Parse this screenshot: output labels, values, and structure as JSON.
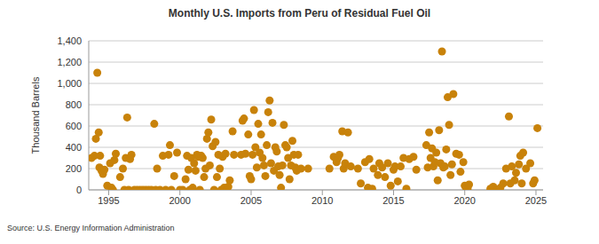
{
  "chart_data": {
    "type": "scatter",
    "title": "Monthly U.S. Imports from Peru of Residual Fuel Oil",
    "y_label": "Thousand Barrels",
    "source": "Source: U.S. Energy Information Administration",
    "color": "#c8820a",
    "marker": "circle",
    "grid": true,
    "xlim": [
      1993.6,
      2025.5
    ],
    "xticks": [
      1995,
      2000,
      2005,
      2010,
      2015,
      2020,
      2025
    ],
    "ylim": [
      0,
      1400
    ],
    "yticks": [
      0,
      200,
      400,
      600,
      800,
      {
        "value": 1000,
        "label": "1,000"
      },
      {
        "value": 1200,
        "label": "1,200"
      },
      {
        "value": 1400,
        "label": "1,400"
      }
    ],
    "x": [
      1993.8,
      1994.0,
      1994.1,
      1994.2,
      1994.3,
      1994.35,
      1994.4,
      1994.5,
      1994.6,
      1994.7,
      1994.9,
      1995.1,
      1995.2,
      1995.3,
      1995.4,
      1995.5,
      1995.8,
      1996.0,
      1996.1,
      1996.2,
      1996.3,
      1996.4,
      1996.5,
      1996.6,
      1996.8,
      1997.0,
      1997.2,
      1997.4,
      1997.6,
      1997.8,
      1998.0,
      1998.2,
      1998.3,
      1998.4,
      1998.6,
      1998.8,
      1999.0,
      1999.2,
      1999.3,
      1999.4,
      1999.6,
      1999.8,
      2000.0,
      2000.2,
      2000.4,
      2000.5,
      2000.6,
      2000.7,
      2000.8,
      2000.9,
      2001.0,
      2001.1,
      2001.2,
      2001.3,
      2001.4,
      2001.5,
      2001.6,
      2001.7,
      2001.8,
      2001.9,
      2002.0,
      2002.1,
      2002.2,
      2002.3,
      2002.4,
      2002.5,
      2002.6,
      2002.7,
      2002.8,
      2002.9,
      2003.0,
      2003.1,
      2003.2,
      2003.3,
      2003.4,
      2003.5,
      2003.7,
      2003.8,
      2004.3,
      2004.4,
      2004.5,
      2004.6,
      2004.8,
      2004.9,
      2005.0,
      2005.1,
      2005.2,
      2005.3,
      2005.4,
      2005.5,
      2005.6,
      2005.7,
      2005.8,
      2005.9,
      2006.0,
      2006.1,
      2006.2,
      2006.3,
      2006.4,
      2006.5,
      2006.6,
      2006.7,
      2006.8,
      2006.9,
      2007.0,
      2007.1,
      2007.2,
      2007.3,
      2007.4,
      2007.5,
      2007.6,
      2007.7,
      2007.8,
      2007.9,
      2008.0,
      2008.1,
      2008.2,
      2008.3,
      2008.5,
      2009.0,
      2010.5,
      2010.8,
      2011.0,
      2011.1,
      2011.2,
      2011.4,
      2011.5,
      2011.6,
      2011.8,
      2012.0,
      2012.5,
      2012.7,
      2013.0,
      2013.2,
      2013.3,
      2013.5,
      2013.6,
      2013.9,
      2014.0,
      2014.2,
      2014.4,
      2014.6,
      2014.8,
      2015.0,
      2015.1,
      2015.3,
      2015.5,
      2015.7,
      2015.9,
      2016.1,
      2016.4,
      2016.6,
      2017.3,
      2017.4,
      2017.5,
      2017.6,
      2017.7,
      2017.8,
      2017.9,
      2018.0,
      2018.1,
      2018.2,
      2018.3,
      2018.4,
      2018.5,
      2018.6,
      2018.7,
      2018.8,
      2018.9,
      2019.0,
      2019.1,
      2019.2,
      2019.4,
      2019.6,
      2019.7,
      2019.9,
      2020.0,
      2020.1,
      2020.2,
      2020.3,
      2021.8,
      2022.0,
      2022.3,
      2022.5,
      2022.7,
      2022.9,
      2023.1,
      2023.2,
      2023.3,
      2023.5,
      2023.6,
      2023.8,
      2023.9,
      2024.0,
      2024.1,
      2024.3,
      2024.6,
      2024.8,
      2024.9,
      2025.1
    ],
    "values": [
      300,
      320,
      480,
      1100,
      540,
      210,
      320,
      180,
      150,
      190,
      40,
      250,
      20,
      0,
      280,
      340,
      120,
      200,
      0,
      300,
      680,
      0,
      290,
      330,
      0,
      0,
      0,
      0,
      0,
      0,
      0,
      620,
      0,
      200,
      0,
      320,
      0,
      330,
      420,
      0,
      130,
      350,
      0,
      0,
      100,
      320,
      190,
      0,
      300,
      20,
      250,
      180,
      330,
      310,
      0,
      320,
      300,
      120,
      200,
      480,
      540,
      230,
      660,
      410,
      0,
      450,
      120,
      330,
      200,
      0,
      310,
      20,
      340,
      0,
      30,
      90,
      550,
      330,
      330,
      650,
      670,
      340,
      520,
      130,
      100,
      330,
      750,
      400,
      210,
      620,
      350,
      520,
      300,
      230,
      130,
      420,
      730,
      840,
      250,
      630,
      180,
      400,
      360,
      220,
      140,
      20,
      230,
      610,
      420,
      400,
      300,
      100,
      230,
      460,
      330,
      210,
      180,
      330,
      200,
      200,
      200,
      310,
      260,
      300,
      330,
      550,
      200,
      250,
      540,
      220,
      200,
      60,
      260,
      20,
      290,
      10,
      200,
      140,
      250,
      210,
      120,
      250,
      40,
      190,
      220,
      80,
      220,
      300,
      10,
      290,
      310,
      190,
      420,
      210,
      540,
      300,
      390,
      220,
      260,
      350,
      90,
      560,
      250,
      1300,
      210,
      220,
      380,
      870,
      610,
      140,
      240,
      900,
      340,
      330,
      170,
      260,
      40,
      20,
      10,
      50,
      10,
      30,
      0,
      20,
      60,
      200,
      690,
      60,
      220,
      90,
      160,
      240,
      320,
      60,
      350,
      200,
      250,
      60,
      90,
      580
    ]
  }
}
